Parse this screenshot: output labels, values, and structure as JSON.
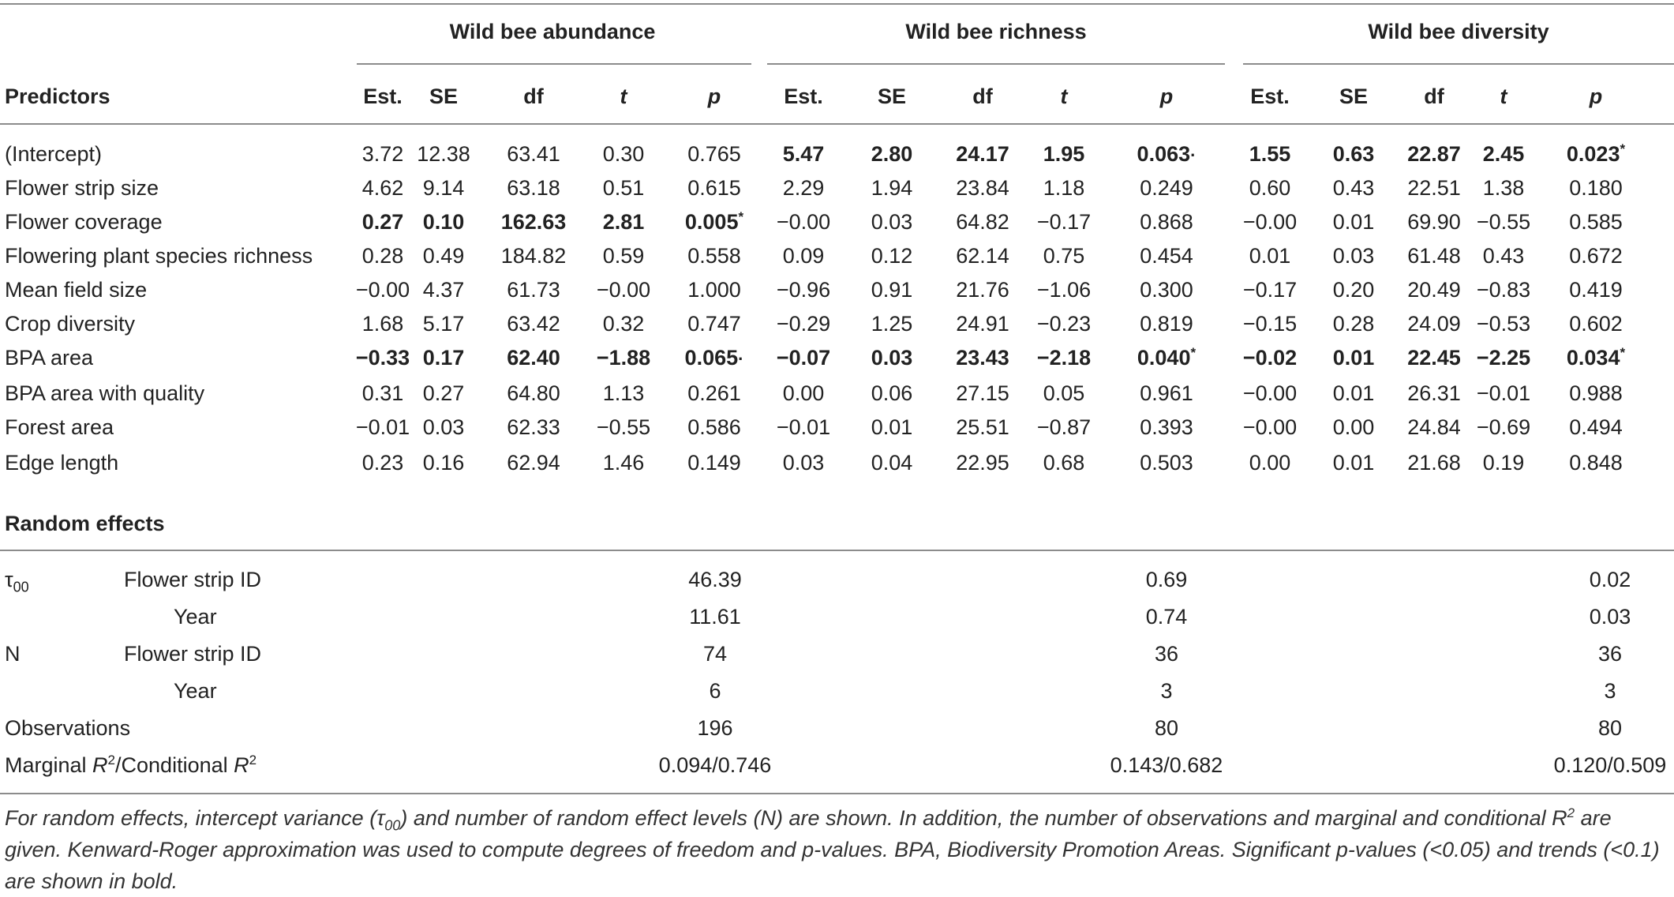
{
  "groups": [
    "Wild bee abundance",
    "Wild bee richness",
    "Wild bee diversity"
  ],
  "columns": [
    "Predictors",
    "Est.",
    "SE",
    "df",
    "t",
    "p",
    "Est.",
    "SE",
    "df",
    "t",
    "p",
    "Est.",
    "SE",
    "df",
    "t",
    "p"
  ],
  "rows": [
    {
      "label": "(Intercept)",
      "bold": [
        false,
        false,
        false,
        false,
        false,
        true,
        true,
        true,
        true,
        true,
        true,
        true,
        true,
        true,
        true
      ],
      "values": [
        "3.72",
        "12.38",
        "63.41",
        "0.30",
        "0.765",
        "5.47",
        "2.80",
        "24.17",
        "1.95",
        "0.063",
        "1.55",
        "0.63",
        "22.87",
        "2.45",
        "0.023"
      ],
      "marks": [
        "",
        "·",
        "*"
      ]
    },
    {
      "label": "Flower strip size",
      "bold": [
        false,
        false,
        false,
        false,
        false,
        false,
        false,
        false,
        false,
        false,
        false,
        false,
        false,
        false,
        false
      ],
      "values": [
        "4.62",
        "9.14",
        "63.18",
        "0.51",
        "0.615",
        "2.29",
        "1.94",
        "23.84",
        "1.18",
        "0.249",
        "0.60",
        "0.43",
        "22.51",
        "1.38",
        "0.180"
      ],
      "marks": [
        "",
        "",
        ""
      ]
    },
    {
      "label": "Flower coverage",
      "bold": [
        true,
        true,
        true,
        true,
        true,
        false,
        false,
        false,
        false,
        false,
        false,
        false,
        false,
        false,
        false
      ],
      "values": [
        "0.27",
        "0.10",
        "162.63",
        "2.81",
        "0.005",
        "−0.00",
        "0.03",
        "64.82",
        "−0.17",
        "0.868",
        "−0.00",
        "0.01",
        "69.90",
        "−0.55",
        "0.585"
      ],
      "marks": [
        "*",
        "",
        ""
      ]
    },
    {
      "label": "Flowering plant species richness",
      "bold": [
        false,
        false,
        false,
        false,
        false,
        false,
        false,
        false,
        false,
        false,
        false,
        false,
        false,
        false,
        false
      ],
      "values": [
        "0.28",
        "0.49",
        "184.82",
        "0.59",
        "0.558",
        "0.09",
        "0.12",
        "62.14",
        "0.75",
        "0.454",
        "0.01",
        "0.03",
        "61.48",
        "0.43",
        "0.672"
      ],
      "marks": [
        "",
        "",
        ""
      ]
    },
    {
      "label": "Mean field size",
      "bold": [
        false,
        false,
        false,
        false,
        false,
        false,
        false,
        false,
        false,
        false,
        false,
        false,
        false,
        false,
        false
      ],
      "values": [
        "−0.00",
        "4.37",
        "61.73",
        "−0.00",
        "1.000",
        "−0.96",
        "0.91",
        "21.76",
        "−1.06",
        "0.300",
        "−0.17",
        "0.20",
        "20.49",
        "−0.83",
        "0.419"
      ],
      "marks": [
        "",
        "",
        ""
      ]
    },
    {
      "label": "Crop diversity",
      "bold": [
        false,
        false,
        false,
        false,
        false,
        false,
        false,
        false,
        false,
        false,
        false,
        false,
        false,
        false,
        false
      ],
      "values": [
        "1.68",
        "5.17",
        "63.42",
        "0.32",
        "0.747",
        "−0.29",
        "1.25",
        "24.91",
        "−0.23",
        "0.819",
        "−0.15",
        "0.28",
        "24.09",
        "−0.53",
        "0.602"
      ],
      "marks": [
        "",
        "",
        ""
      ]
    },
    {
      "label": "BPA area",
      "bold": [
        true,
        true,
        true,
        true,
        true,
        true,
        true,
        true,
        true,
        true,
        true,
        true,
        true,
        true,
        true
      ],
      "values": [
        "−0.33",
        "0.17",
        "62.40",
        "−1.88",
        "0.065",
        "−0.07",
        "0.03",
        "23.43",
        "−2.18",
        "0.040",
        "−0.02",
        "0.01",
        "22.45",
        "−2.25",
        "0.034"
      ],
      "marks": [
        "·",
        "*",
        "*"
      ]
    },
    {
      "label": "BPA area with quality",
      "bold": [
        false,
        false,
        false,
        false,
        false,
        false,
        false,
        false,
        false,
        false,
        false,
        false,
        false,
        false,
        false
      ],
      "values": [
        "0.31",
        "0.27",
        "64.80",
        "1.13",
        "0.261",
        "0.00",
        "0.06",
        "27.15",
        "0.05",
        "0.961",
        "−0.00",
        "0.01",
        "26.31",
        "−0.01",
        "0.988"
      ],
      "marks": [
        "",
        "",
        ""
      ]
    },
    {
      "label": "Forest area",
      "bold": [
        false,
        false,
        false,
        false,
        false,
        false,
        false,
        false,
        false,
        false,
        false,
        false,
        false,
        false,
        false
      ],
      "values": [
        "−0.01",
        "0.03",
        "62.33",
        "−0.55",
        "0.586",
        "−0.01",
        "0.01",
        "25.51",
        "−0.87",
        "0.393",
        "−0.00",
        "0.00",
        "24.84",
        "−0.69",
        "0.494"
      ],
      "marks": [
        "",
        "",
        ""
      ]
    },
    {
      "label": "Edge length",
      "bold": [
        false,
        false,
        false,
        false,
        false,
        false,
        false,
        false,
        false,
        false,
        false,
        false,
        false,
        false,
        false
      ],
      "values": [
        "0.23",
        "0.16",
        "62.94",
        "1.46",
        "0.149",
        "0.03",
        "0.04",
        "22.95",
        "0.68",
        "0.503",
        "0.00",
        "0.01",
        "21.68",
        "0.19",
        "0.848"
      ],
      "marks": [
        "",
        "",
        ""
      ]
    }
  ],
  "random_effects": {
    "title": "Random effects",
    "tau_symbol": "τ",
    "tau_sub": "00",
    "n_label": "N",
    "flower_strip_label": "Flower strip ID",
    "year_label": "Year",
    "tau_flower": [
      "46.39",
      "0.69",
      "0.02"
    ],
    "tau_year": [
      "11.61",
      "0.74",
      "0.03"
    ],
    "n_flower": [
      "74",
      "36",
      "36"
    ],
    "n_year": [
      "6",
      "3",
      "3"
    ],
    "observations_label": "Observations",
    "observations": [
      "196",
      "80",
      "80"
    ],
    "r2_label_a": "Marginal ",
    "r2_label_b": "/Conditional ",
    "r2_symbol": "R",
    "r2_sup": "2",
    "r2": [
      "0.094/0.746",
      "0.143/0.682",
      "0.120/0.509"
    ]
  },
  "caption": "For random effects, intercept variance (τ00) and number of random effect levels (N) are shown. In addition, the number of observations and marginal and conditional R2 are given. Kenward-Roger approximation was used to compute degrees of freedom and p-values. BPA, Biodiversity Promotion Areas. Significant p-values (<0.05) and trends (<0.1) are shown in bold.",
  "caption_parts": {
    "a": "For random effects, intercept variance (τ",
    "a_sub": "00",
    "b": ") and number of random effect levels (N) are shown. In addition, the number of observations and marginal and conditional R",
    "b_sup": "2",
    "c": " are given. Kenward-Roger approximation was used to compute degrees of freedom and p-values. BPA, Biodiversity Promotion Areas. Significant p-values (<0.05) and trends (<0.1) are shown in bold."
  }
}
